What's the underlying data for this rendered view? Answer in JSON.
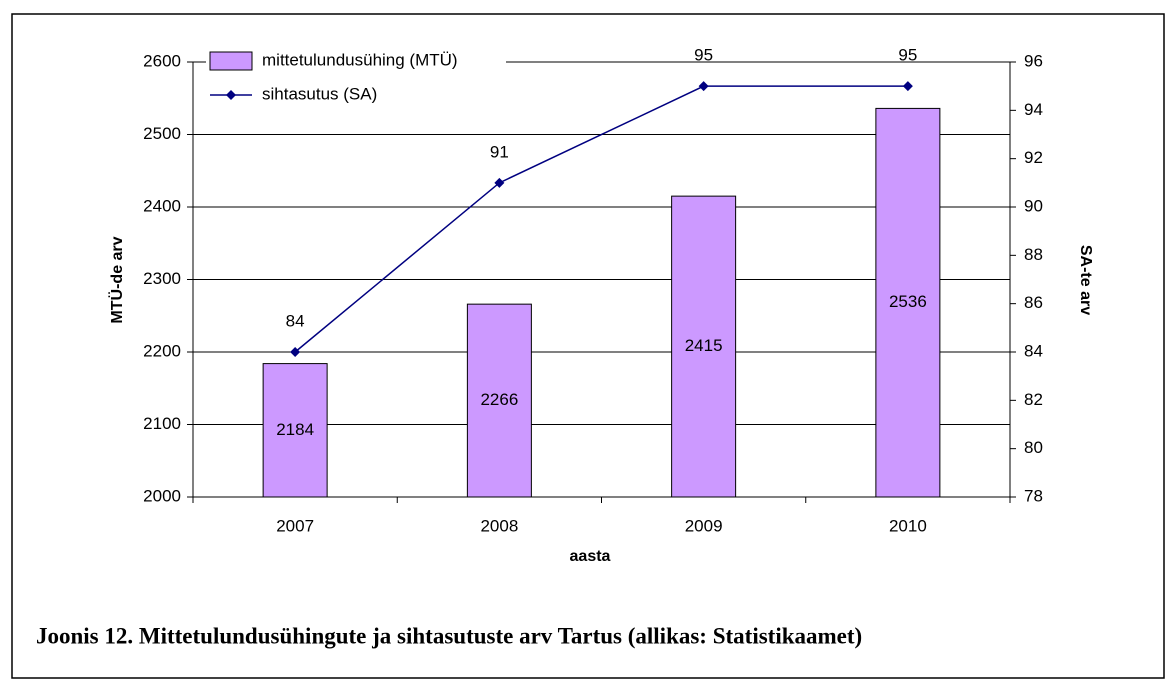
{
  "chart_data": {
    "type": "bar",
    "categories": [
      "2007",
      "2008",
      "2009",
      "2010"
    ],
    "x_label": "aasta",
    "y_label": "MTÜ-de arv",
    "y2_label": "SA-te arv",
    "caption": "Joonis 12. Mittetulundusühingute ja sihtasutuste arv Tartus (allikas: Statistikaamet)",
    "series": [
      {
        "name": "mittetulundusühing (MTÜ)",
        "type": "bar",
        "color": "#cc99ff",
        "values": [
          2184,
          2266,
          2415,
          2536
        ]
      },
      {
        "name": "sihtasutus (SA)",
        "type": "line",
        "axis": "y2",
        "color": "#000080",
        "values": [
          84,
          91,
          95,
          95
        ]
      }
    ],
    "ylim": [
      2000,
      2600
    ],
    "yticks": [
      2000,
      2100,
      2200,
      2300,
      2400,
      2500,
      2600
    ],
    "y2lim": [
      78,
      96
    ],
    "y2ticks": [
      78,
      80,
      82,
      84,
      86,
      88,
      90,
      92,
      94,
      96
    ],
    "grid": true,
    "legend": "top-left"
  }
}
